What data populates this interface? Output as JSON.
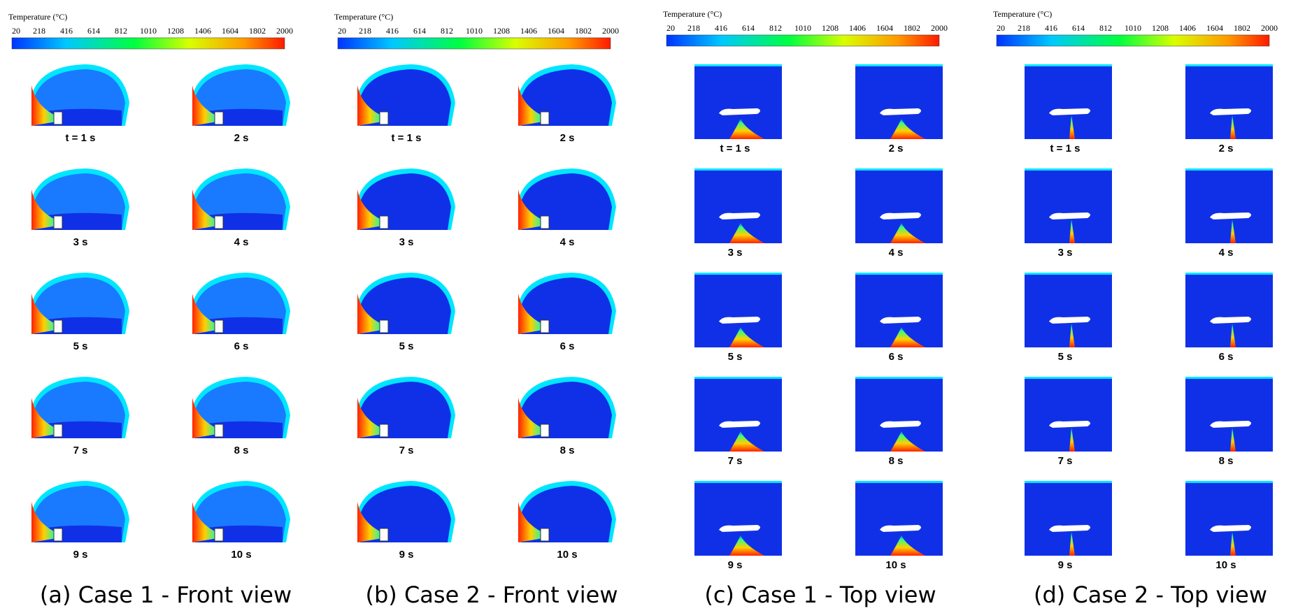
{
  "panels": [
    {
      "view": "front",
      "caption": "(a) Case 1 - Front view",
      "colorbar": {
        "title": "Temperature (°C)",
        "ticks": [
          20,
          218,
          416,
          614,
          812,
          1010,
          1208,
          1406,
          1604,
          1802,
          2000
        ]
      },
      "frames": [
        "t = 1 s",
        "2 s",
        "3 s",
        "4 s",
        "5 s",
        "6 s",
        "7 s",
        "8 s",
        "9 s",
        "10 s"
      ]
    },
    {
      "view": "front",
      "caption": "(b) Case 2 - Front view",
      "colorbar": {
        "title": "Temperature (°C)",
        "ticks": [
          20,
          218,
          416,
          614,
          812,
          1010,
          1208,
          1406,
          1604,
          1802,
          2000
        ]
      },
      "frames": [
        "t = 1 s",
        "2 s",
        "3 s",
        "4 s",
        "5 s",
        "6 s",
        "7 s",
        "8 s",
        "9 s",
        "10 s"
      ]
    },
    {
      "view": "top",
      "caption": "(c) Case 1 - Top view",
      "colorbar": {
        "title": "Temperature (°C)",
        "ticks": [
          20,
          218,
          416,
          614,
          812,
          1010,
          1208,
          1406,
          1604,
          1802,
          2000
        ]
      },
      "frames": [
        "t = 1 s",
        "2 s",
        "3 s",
        "4 s",
        "5 s",
        "6 s",
        "7 s",
        "8 s",
        "9 s",
        "10 s"
      ]
    },
    {
      "view": "top",
      "caption": "(d) Case 2 - Top view",
      "colorbar": {
        "title": "Temperature (°C)",
        "ticks": [
          20,
          218,
          416,
          614,
          812,
          1010,
          1208,
          1406,
          1604,
          1802,
          2000
        ]
      },
      "frames": [
        "t = 1 s",
        "2 s",
        "3 s",
        "4 s",
        "5 s",
        "6 s",
        "7 s",
        "8 s",
        "9 s",
        "10 s"
      ]
    }
  ]
}
